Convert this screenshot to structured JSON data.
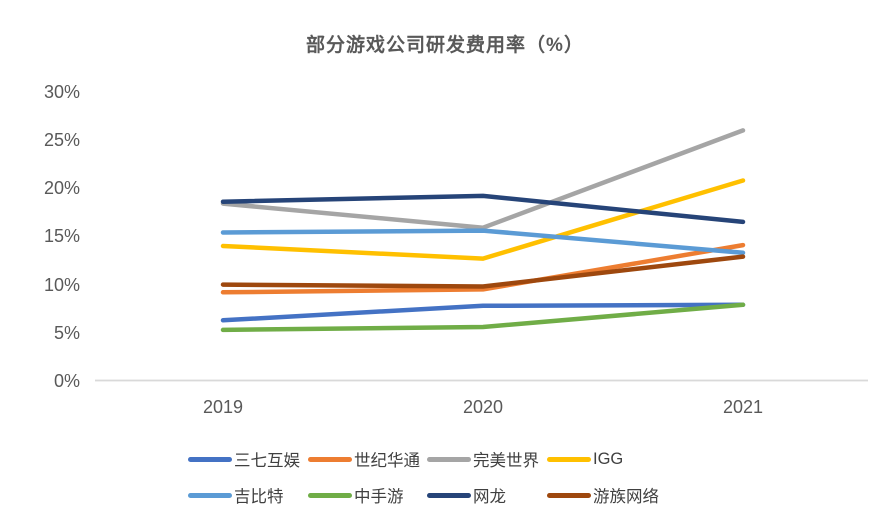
{
  "chart_data": {
    "type": "line",
    "title": "部分游戏公司研发费用率（%）",
    "x": [
      "2019",
      "2020",
      "2021"
    ],
    "xlabel": "",
    "ylabel": "",
    "ylim": [
      0,
      30
    ],
    "y_tick_step": 5,
    "y_tick_suffix": "%",
    "grid": "baseline-only",
    "legend_position": "bottom-two-rows",
    "series": [
      {
        "name": "三七互娱",
        "color": "#4472C4",
        "values": [
          6.3,
          7.8,
          7.9
        ]
      },
      {
        "name": "世纪华通",
        "color": "#ED7D31",
        "values": [
          9.2,
          9.5,
          14.1
        ]
      },
      {
        "name": "完美世界",
        "color": "#A5A5A5",
        "values": [
          18.4,
          15.9,
          26.0
        ]
      },
      {
        "name": "IGG",
        "color": "#FFC000",
        "values": [
          14.0,
          12.7,
          20.8
        ]
      },
      {
        "name": "吉比特",
        "color": "#5B9BD5",
        "values": [
          15.4,
          15.6,
          13.3
        ]
      },
      {
        "name": "中手游",
        "color": "#70AD47",
        "values": [
          5.3,
          5.6,
          7.9
        ]
      },
      {
        "name": "网龙",
        "color": "#264478",
        "values": [
          18.6,
          19.2,
          16.5
        ]
      },
      {
        "name": "游族网络",
        "color": "#9E480E",
        "values": [
          10.0,
          9.8,
          12.9
        ]
      }
    ],
    "colors": {
      "axis_line": "#D9D9D9",
      "tick_label": "#595959",
      "title": "#595959",
      "legend_label": "#404040"
    }
  }
}
